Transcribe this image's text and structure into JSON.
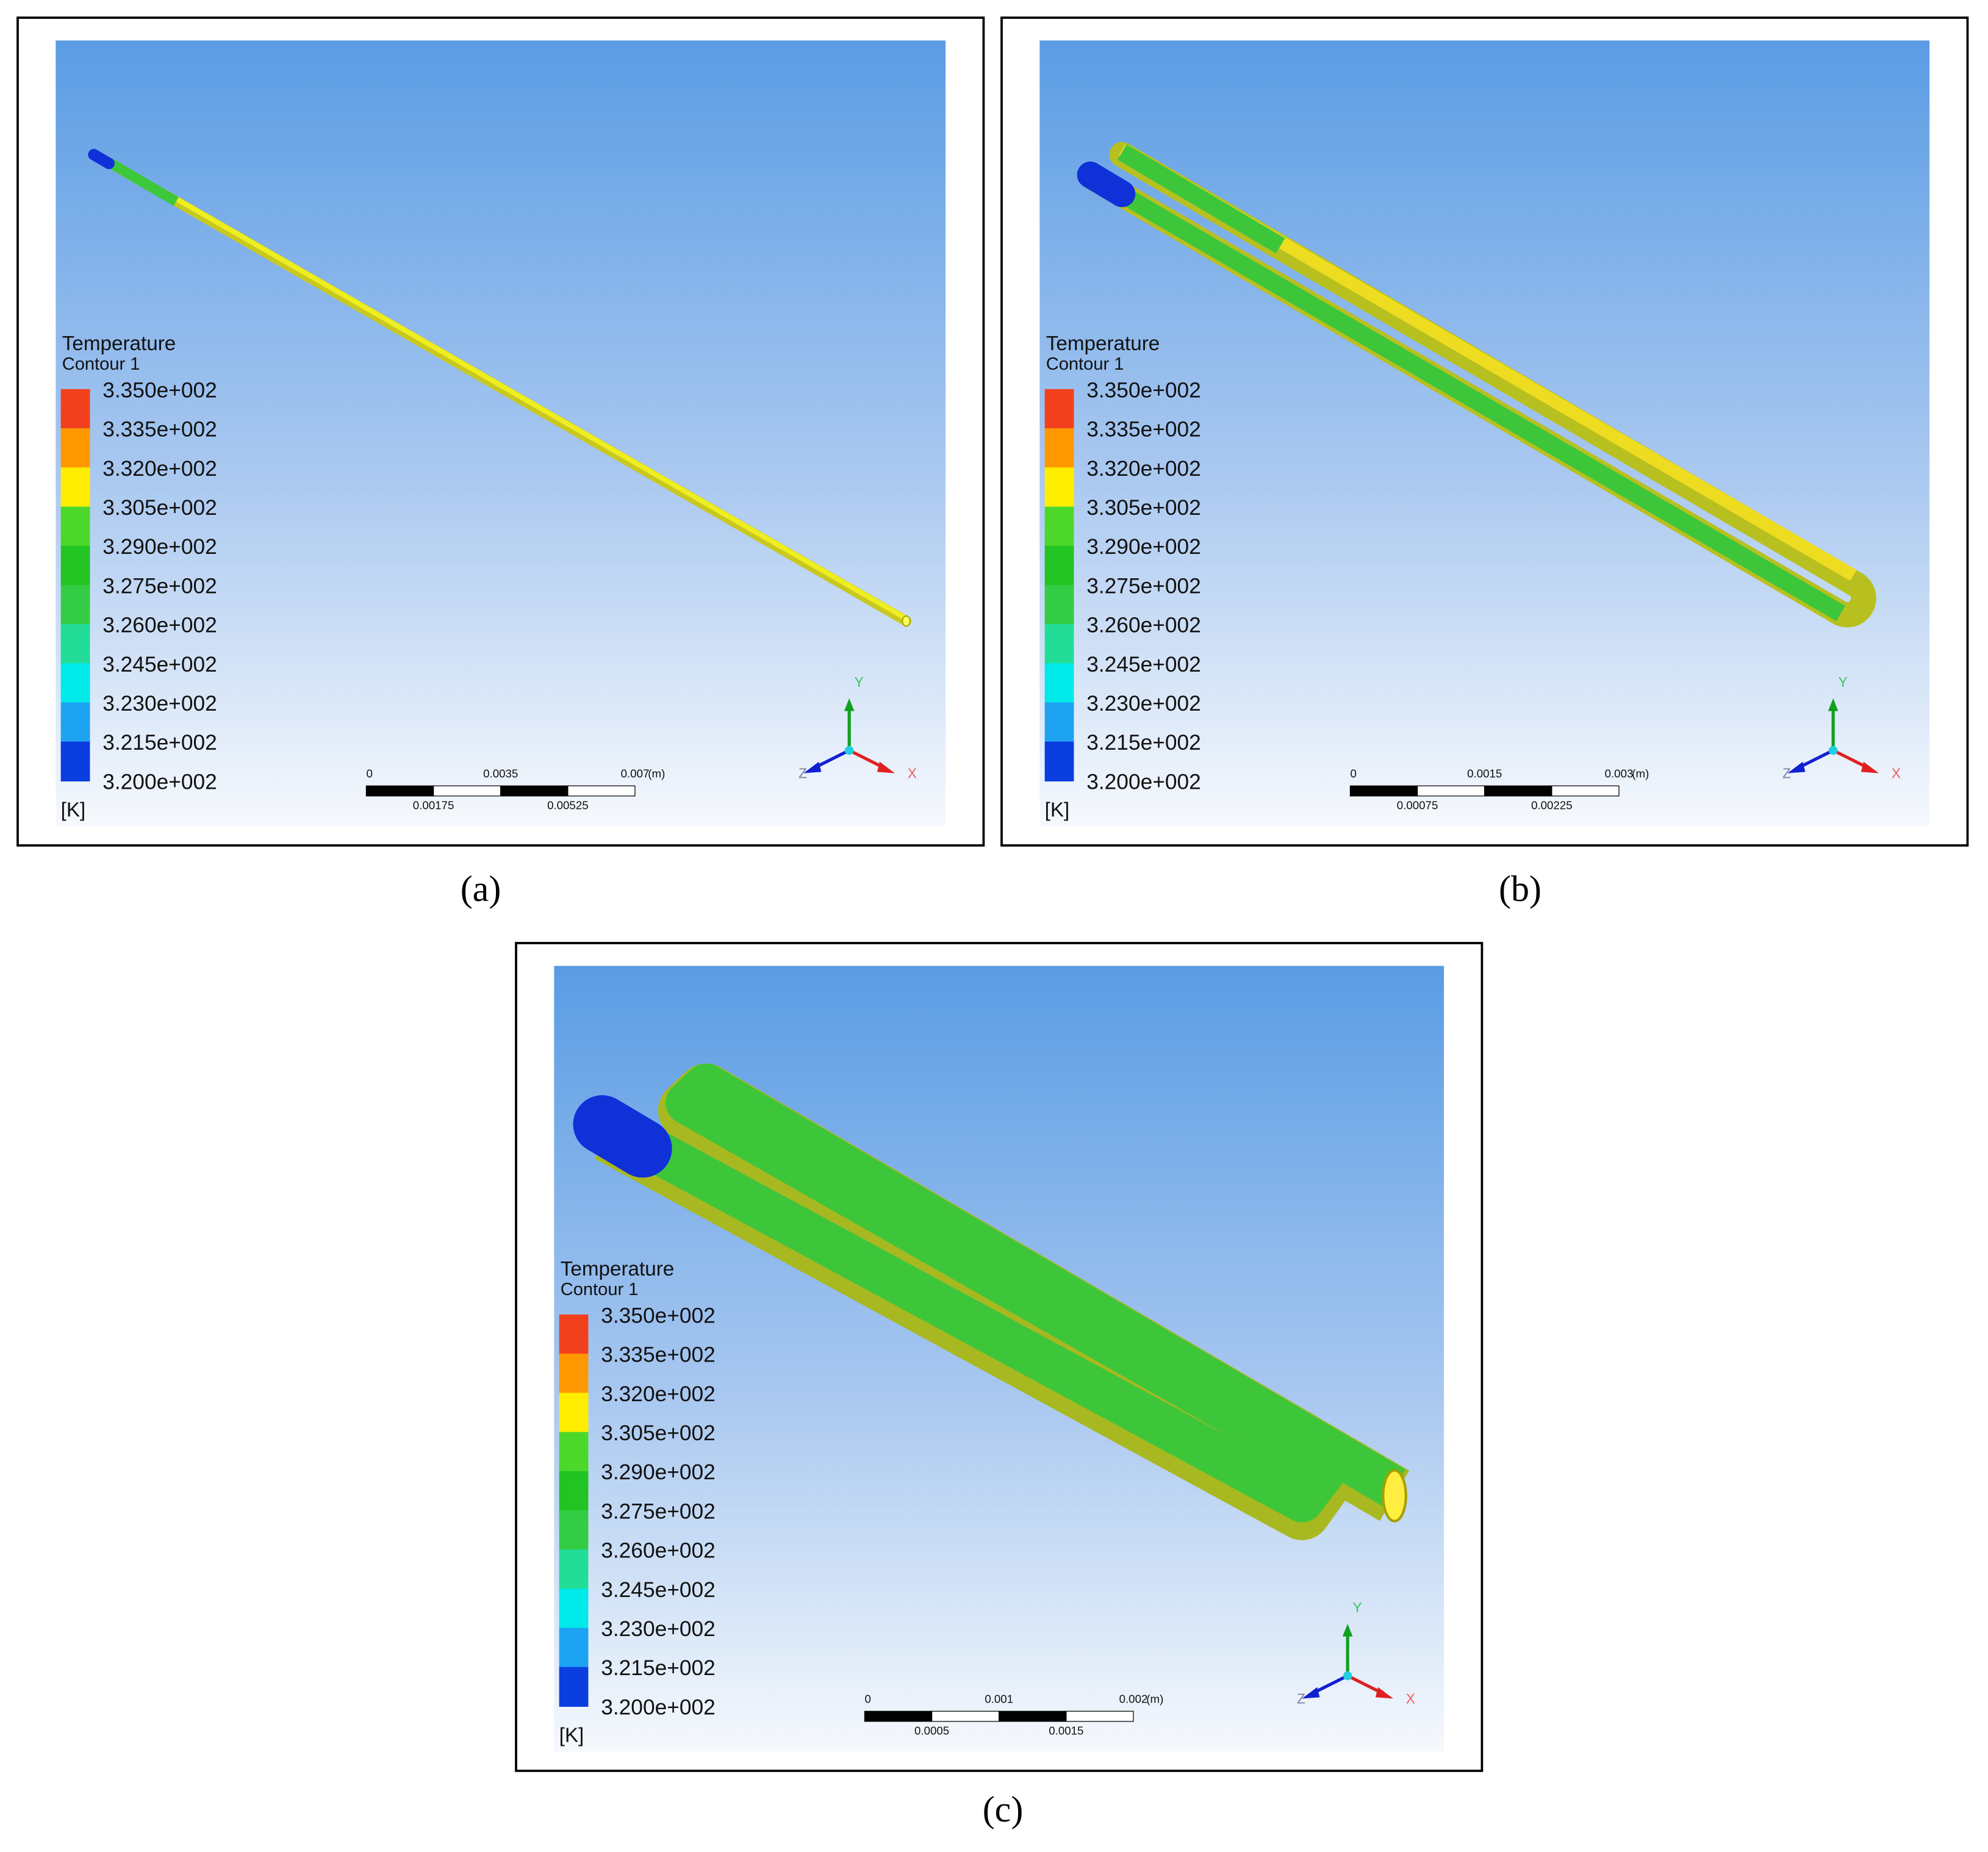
{
  "panels": [
    {
      "legend": {
        "title": "Temperature",
        "subtitle": "Contour 1",
        "labels": [
          "3.350e+002",
          "3.335e+002",
          "3.320e+002",
          "3.305e+002",
          "3.290e+002",
          "3.275e+002",
          "3.260e+002",
          "3.245e+002",
          "3.230e+002",
          "3.215e+002",
          "3.200e+002"
        ],
        "unit": "[K]"
      },
      "scale_bar": {
        "top": [
          "0",
          "0.0035",
          "0.007"
        ],
        "unit": "(m)",
        "bottom": [
          "0.00175",
          "0.00525"
        ]
      },
      "axes": {
        "x": "X",
        "y": "Y",
        "z": "Z"
      },
      "caption": "(a)"
    },
    {
      "legend": {
        "title": "Temperature",
        "subtitle": "Contour 1",
        "labels": [
          "3.350e+002",
          "3.335e+002",
          "3.320e+002",
          "3.305e+002",
          "3.290e+002",
          "3.275e+002",
          "3.260e+002",
          "3.245e+002",
          "3.230e+002",
          "3.215e+002",
          "3.200e+002"
        ],
        "unit": "[K]"
      },
      "scale_bar": {
        "top": [
          "0",
          "0.0015",
          "0.003"
        ],
        "unit": "(m)",
        "bottom": [
          "0.00075",
          "0.00225"
        ]
      },
      "axes": {
        "x": "X",
        "y": "Y",
        "z": "Z"
      },
      "caption": "(b)"
    },
    {
      "legend": {
        "title": "Temperature",
        "subtitle": "Contour 1",
        "labels": [
          "3.350e+002",
          "3.335e+002",
          "3.320e+002",
          "3.305e+002",
          "3.290e+002",
          "3.275e+002",
          "3.260e+002",
          "3.245e+002",
          "3.230e+002",
          "3.215e+002",
          "3.200e+002"
        ],
        "unit": "[K]"
      },
      "scale_bar": {
        "top": [
          "0",
          "0.001",
          "0.002"
        ],
        "unit": "(m)",
        "bottom": [
          "0.0005",
          "0.0015"
        ]
      },
      "axes": {
        "x": "X",
        "y": "Y",
        "z": "Z"
      },
      "caption": "(c)"
    }
  ]
}
